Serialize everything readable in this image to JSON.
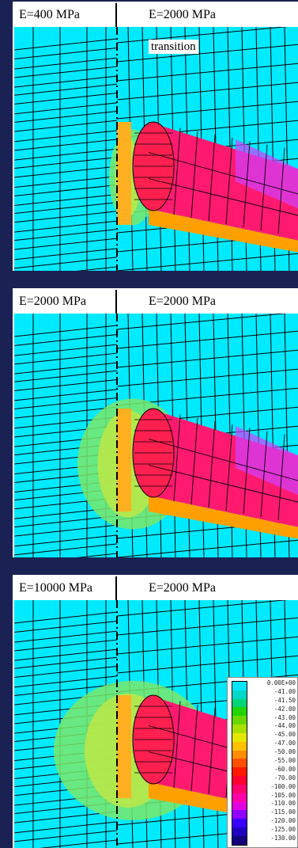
{
  "panels": [
    {
      "left_label": "E=400 MPa",
      "right_label": "E=2000 MPa",
      "annotation": "transition",
      "halo": "small"
    },
    {
      "left_label": "E=2000 MPa",
      "right_label": "E=2000 MPa",
      "annotation": "",
      "halo": "medium"
    },
    {
      "left_label": "E=10000 MPa",
      "right_label": "E=2000 MPa",
      "annotation": "",
      "halo": "large"
    }
  ],
  "legend": {
    "levels": [
      {
        "label": "0.00E+00",
        "color": "#00e6ff"
      },
      {
        "label": "-41.00",
        "color": "#00d9c8"
      },
      {
        "label": "-41.50",
        "color": "#00d47a"
      },
      {
        "label": "-42.00",
        "color": "#22d400"
      },
      {
        "label": "-43.00",
        "color": "#6ad800"
      },
      {
        "label": "-44.00",
        "color": "#a8e000"
      },
      {
        "label": "-45.00",
        "color": "#e4e800"
      },
      {
        "label": "-47.00",
        "color": "#ffc000"
      },
      {
        "label": "-50.00",
        "color": "#ff8c00"
      },
      {
        "label": "-55.00",
        "color": "#ff5000"
      },
      {
        "label": "-60.00",
        "color": "#ff1a00"
      },
      {
        "label": "-70.00",
        "color": "#ff0030"
      },
      {
        "label": "-100.00",
        "color": "#ff0070"
      },
      {
        "label": "-105.00",
        "color": "#ff00a8"
      },
      {
        "label": "-110.00",
        "color": "#e000e0"
      },
      {
        "label": "-115.00",
        "color": "#9000ff"
      },
      {
        "label": "-120.00",
        "color": "#3a00ff"
      },
      {
        "label": "-125.00",
        "color": "#2000c0"
      },
      {
        "label": "-130.00",
        "color": "#10007a"
      }
    ]
  }
}
